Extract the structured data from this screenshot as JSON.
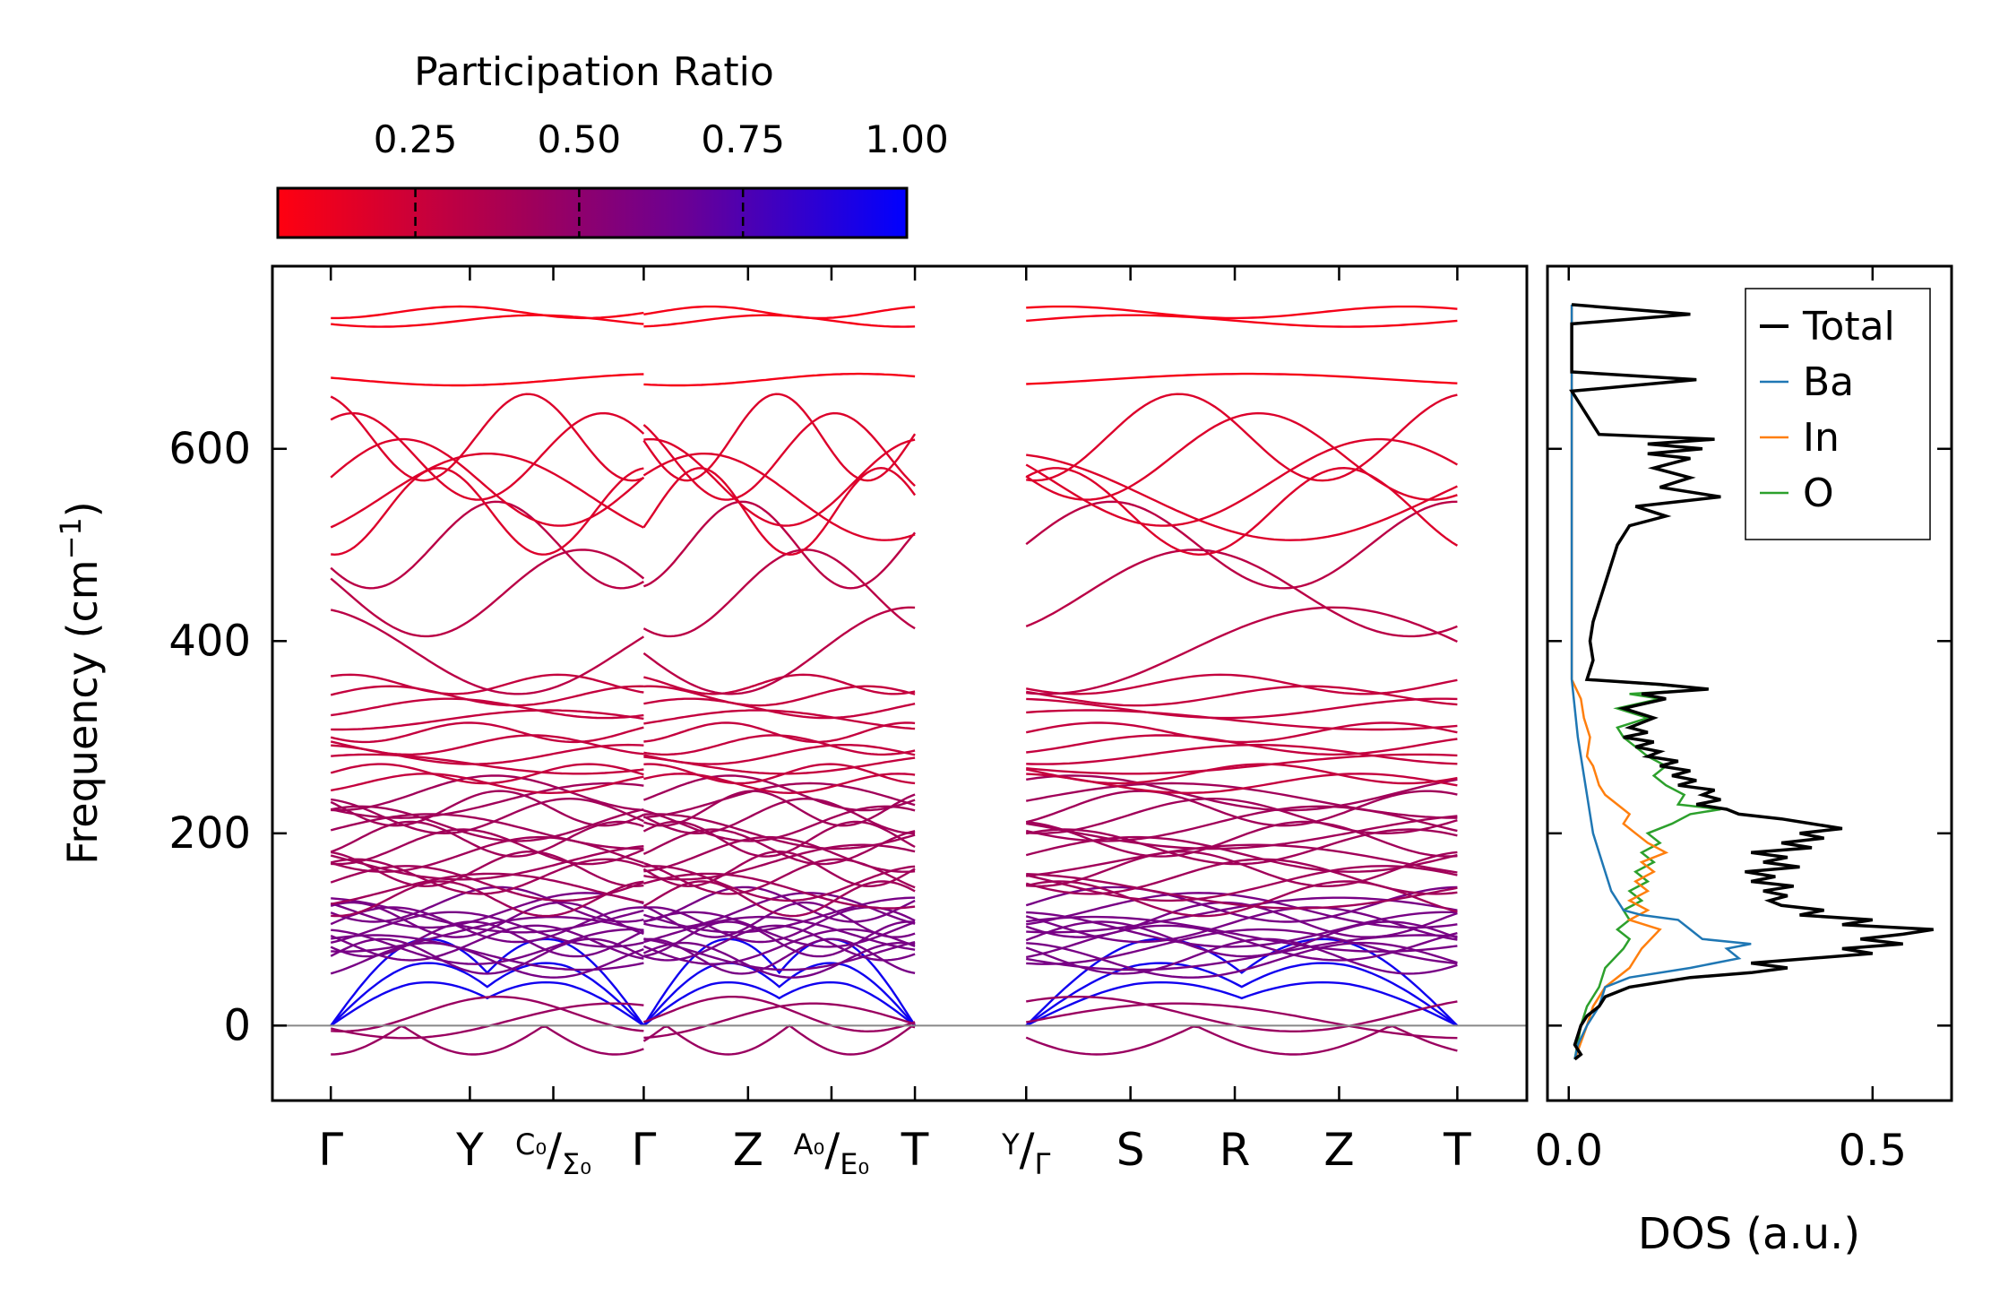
{
  "colorbar": {
    "title": "Participation Ratio",
    "ticks": [
      0.25,
      0.5,
      0.75,
      1.0
    ],
    "tick_labels": [
      "0.25",
      "0.50",
      "0.75",
      "1.00"
    ],
    "range": [
      0.04,
      1.0
    ],
    "color_low": "#ff0000",
    "color_high": "#0000ff"
  },
  "chart_data": [
    {
      "type": "line",
      "name": "phonon-band-structure",
      "ylabel": "Frequency (cm⁻¹)",
      "ylim": [
        -78,
        790
      ],
      "yticks": [
        0,
        200,
        400,
        600
      ],
      "ytick_labels": [
        "0",
        "200",
        "400",
        "600"
      ],
      "segments": [
        {
          "labels": [
            "Γ",
            "Y",
            "C₀/Σ₀",
            "Γ"
          ],
          "positions": [
            0,
            1.0,
            1.6,
            2.25
          ]
        },
        {
          "labels": [
            "Γ",
            "Z",
            "A₀/E₀",
            "T"
          ],
          "positions": [
            2.25,
            3.0,
            3.6,
            4.2
          ]
        },
        {
          "labels": [
            "Y/Γ",
            "S",
            "R",
            "Z",
            "T"
          ],
          "positions": [
            5.0,
            5.75,
            6.5,
            7.25,
            8.1
          ]
        }
      ],
      "xticks": [
        0,
        1.0,
        1.6,
        2.25,
        3.0,
        3.6,
        4.2,
        5.0,
        5.75,
        6.5,
        7.25,
        8.1
      ],
      "xtick_labels": [
        "Γ",
        "Y",
        "C₀/Σ₀",
        "Γ",
        "Z",
        "A₀/E₀",
        "T",
        "Y/Γ",
        "S",
        "R",
        "Z",
        "T"
      ],
      "xlim": [
        -0.42,
        8.6
      ],
      "color_by": "participation ratio",
      "zero_line": 0,
      "gamma_frequencies": [
        -30,
        0,
        0,
        0,
        5,
        12,
        68,
        72,
        76,
        82,
        86,
        90,
        95,
        100,
        105,
        110,
        115,
        120,
        126,
        132,
        140,
        148,
        155,
        163,
        170,
        178,
        186,
        194,
        202,
        210,
        218,
        226,
        234,
        242,
        252,
        262,
        272,
        282,
        292,
        305,
        318,
        330,
        343,
        355,
        390,
        450,
        500,
        535,
        550,
        565,
        592,
        612,
        672,
        733,
        742
      ]
    },
    {
      "type": "line",
      "name": "density-of-states",
      "xlabel": "DOS (a.u.)",
      "xlim": [
        -0.035,
        0.63
      ],
      "xticks": [
        0.0,
        0.5
      ],
      "xtick_labels": [
        "0.0",
        "0.5"
      ],
      "ylim": [
        -78,
        790
      ],
      "legend_position": "top-right",
      "series": [
        {
          "name": "Total",
          "color": "#000000",
          "points": [
            [
              -35,
              0.01
            ],
            [
              -30,
              0.02
            ],
            [
              -20,
              0.01
            ],
            [
              -10,
              0.015
            ],
            [
              0,
              0.02
            ],
            [
              10,
              0.03
            ],
            [
              20,
              0.05
            ],
            [
              30,
              0.06
            ],
            [
              40,
              0.1
            ],
            [
              50,
              0.2
            ],
            [
              55,
              0.3
            ],
            [
              60,
              0.36
            ],
            [
              65,
              0.3
            ],
            [
              70,
              0.4
            ],
            [
              75,
              0.5
            ],
            [
              80,
              0.45
            ],
            [
              85,
              0.55
            ],
            [
              90,
              0.48
            ],
            [
              95,
              0.55
            ],
            [
              100,
              0.6
            ],
            [
              105,
              0.45
            ],
            [
              110,
              0.5
            ],
            [
              115,
              0.38
            ],
            [
              120,
              0.42
            ],
            [
              125,
              0.35
            ],
            [
              130,
              0.33
            ],
            [
              135,
              0.36
            ],
            [
              140,
              0.32
            ],
            [
              145,
              0.37
            ],
            [
              150,
              0.3
            ],
            [
              155,
              0.34
            ],
            [
              160,
              0.29
            ],
            [
              165,
              0.38
            ],
            [
              170,
              0.32
            ],
            [
              175,
              0.36
            ],
            [
              180,
              0.3
            ],
            [
              185,
              0.4
            ],
            [
              190,
              0.35
            ],
            [
              195,
              0.42
            ],
            [
              200,
              0.38
            ],
            [
              205,
              0.45
            ],
            [
              210,
              0.4
            ],
            [
              215,
              0.35
            ],
            [
              220,
              0.28
            ],
            [
              225,
              0.26
            ],
            [
              230,
              0.21
            ],
            [
              235,
              0.25
            ],
            [
              240,
              0.22
            ],
            [
              245,
              0.24
            ],
            [
              250,
              0.18
            ],
            [
              255,
              0.21
            ],
            [
              260,
              0.17
            ],
            [
              265,
              0.2
            ],
            [
              270,
              0.15
            ],
            [
              275,
              0.18
            ],
            [
              280,
              0.13
            ],
            [
              285,
              0.15
            ],
            [
              290,
              0.11
            ],
            [
              295,
              0.14
            ],
            [
              300,
              0.09
            ],
            [
              305,
              0.13
            ],
            [
              310,
              0.1
            ],
            [
              320,
              0.14
            ],
            [
              330,
              0.09
            ],
            [
              340,
              0.16
            ],
            [
              345,
              0.12
            ],
            [
              350,
              0.23
            ],
            [
              355,
              0.15
            ],
            [
              360,
              0.03
            ],
            [
              380,
              0.04
            ],
            [
              400,
              0.035
            ],
            [
              420,
              0.04
            ],
            [
              440,
              0.05
            ],
            [
              460,
              0.06
            ],
            [
              480,
              0.07
            ],
            [
              500,
              0.08
            ],
            [
              520,
              0.1
            ],
            [
              530,
              0.16
            ],
            [
              540,
              0.11
            ],
            [
              550,
              0.25
            ],
            [
              560,
              0.15
            ],
            [
              570,
              0.2
            ],
            [
              580,
              0.14
            ],
            [
              590,
              0.2
            ],
            [
              595,
              0.13
            ],
            [
              600,
              0.22
            ],
            [
              605,
              0.13
            ],
            [
              610,
              0.24
            ],
            [
              615,
              0.05
            ],
            [
              660,
              0.005
            ],
            [
              672,
              0.21
            ],
            [
              680,
              0.005
            ],
            [
              730,
              0.005
            ],
            [
              740,
              0.2
            ],
            [
              750,
              0.005
            ]
          ]
        },
        {
          "name": "Ba",
          "color": "#1f77b4",
          "points": [
            [
              -35,
              0.01
            ],
            [
              -20,
              0.015
            ],
            [
              0,
              0.03
            ],
            [
              20,
              0.05
            ],
            [
              40,
              0.06
            ],
            [
              50,
              0.1
            ],
            [
              60,
              0.2
            ],
            [
              70,
              0.28
            ],
            [
              80,
              0.26
            ],
            [
              85,
              0.3
            ],
            [
              90,
              0.22
            ],
            [
              100,
              0.2
            ],
            [
              110,
              0.18
            ],
            [
              115,
              0.12
            ],
            [
              120,
              0.09
            ],
            [
              140,
              0.07
            ],
            [
              160,
              0.06
            ],
            [
              180,
              0.05
            ],
            [
              200,
              0.04
            ],
            [
              220,
              0.035
            ],
            [
              240,
              0.03
            ],
            [
              260,
              0.025
            ],
            [
              280,
              0.02
            ],
            [
              300,
              0.015
            ],
            [
              330,
              0.01
            ],
            [
              360,
              0.005
            ],
            [
              750,
              0.005
            ]
          ]
        },
        {
          "name": "In",
          "color": "#ff7f0e",
          "points": [
            [
              -35,
              0.01
            ],
            [
              0,
              0.03
            ],
            [
              20,
              0.04
            ],
            [
              40,
              0.06
            ],
            [
              60,
              0.1
            ],
            [
              80,
              0.12
            ],
            [
              100,
              0.15
            ],
            [
              110,
              0.1
            ],
            [
              120,
              0.13
            ],
            [
              130,
              0.1
            ],
            [
              140,
              0.13
            ],
            [
              150,
              0.11
            ],
            [
              160,
              0.14
            ],
            [
              170,
              0.12
            ],
            [
              180,
              0.16
            ],
            [
              190,
              0.13
            ],
            [
              200,
              0.11
            ],
            [
              210,
              0.09
            ],
            [
              220,
              0.1
            ],
            [
              230,
              0.08
            ],
            [
              240,
              0.06
            ],
            [
              250,
              0.05
            ],
            [
              260,
              0.045
            ],
            [
              270,
              0.04
            ],
            [
              280,
              0.03
            ],
            [
              300,
              0.035
            ],
            [
              320,
              0.025
            ],
            [
              340,
              0.02
            ],
            [
              360,
              0.005
            ],
            [
              750,
              0.005
            ]
          ]
        },
        {
          "name": "O",
          "color": "#2ca02c",
          "points": [
            [
              -35,
              0.01
            ],
            [
              0,
              0.02
            ],
            [
              20,
              0.03
            ],
            [
              40,
              0.05
            ],
            [
              60,
              0.06
            ],
            [
              80,
              0.09
            ],
            [
              90,
              0.1
            ],
            [
              100,
              0.08
            ],
            [
              110,
              0.1
            ],
            [
              120,
              0.09
            ],
            [
              130,
              0.12
            ],
            [
              140,
              0.1
            ],
            [
              150,
              0.13
            ],
            [
              160,
              0.11
            ],
            [
              170,
              0.14
            ],
            [
              180,
              0.12
            ],
            [
              190,
              0.15
            ],
            [
              200,
              0.13
            ],
            [
              210,
              0.17
            ],
            [
              220,
              0.2
            ],
            [
              225,
              0.25
            ],
            [
              230,
              0.18
            ],
            [
              240,
              0.19
            ],
            [
              250,
              0.16
            ],
            [
              260,
              0.14
            ],
            [
              270,
              0.16
            ],
            [
              280,
              0.13
            ],
            [
              290,
              0.11
            ],
            [
              300,
              0.09
            ],
            [
              310,
              0.08
            ],
            [
              320,
              0.13
            ],
            [
              330,
              0.08
            ],
            [
              340,
              0.15
            ],
            [
              345,
              0.1
            ],
            [
              350,
              0.23
            ],
            [
              355,
              0.14
            ],
            [
              360,
              0.03
            ],
            [
              380,
              0.04
            ],
            [
              400,
              0.035
            ],
            [
              420,
              0.04
            ],
            [
              440,
              0.05
            ],
            [
              460,
              0.06
            ],
            [
              480,
              0.07
            ],
            [
              500,
              0.08
            ],
            [
              520,
              0.1
            ],
            [
              530,
              0.16
            ],
            [
              540,
              0.11
            ],
            [
              550,
              0.25
            ],
            [
              560,
              0.15
            ],
            [
              570,
              0.2
            ],
            [
              580,
              0.14
            ],
            [
              590,
              0.2
            ],
            [
              595,
              0.13
            ],
            [
              600,
              0.22
            ],
            [
              605,
              0.13
            ],
            [
              610,
              0.24
            ],
            [
              615,
              0.05
            ],
            [
              660,
              0.005
            ],
            [
              672,
              0.21
            ],
            [
              680,
              0.005
            ],
            [
              730,
              0.005
            ],
            [
              740,
              0.2
            ],
            [
              750,
              0.005
            ]
          ]
        }
      ]
    }
  ]
}
